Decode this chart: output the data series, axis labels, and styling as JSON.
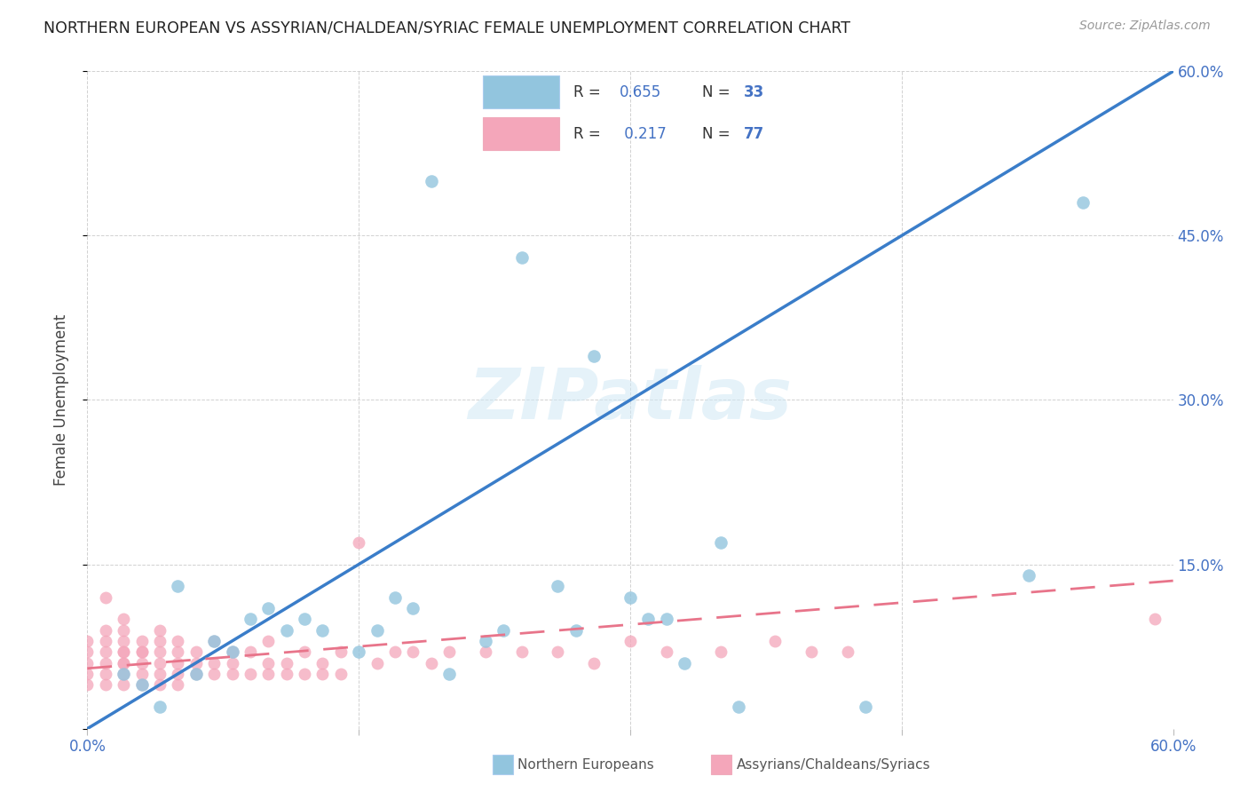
{
  "title": "NORTHERN EUROPEAN VS ASSYRIAN/CHALDEAN/SYRIAC FEMALE UNEMPLOYMENT CORRELATION CHART",
  "source": "Source: ZipAtlas.com",
  "ylabel": "Female Unemployment",
  "watermark": "ZIPatlas",
  "xlim": [
    0.0,
    0.6
  ],
  "ylim": [
    0.0,
    0.6
  ],
  "blue_R": "0.655",
  "blue_N": "33",
  "pink_R": "0.217",
  "pink_N": "77",
  "blue_color": "#92c5de",
  "pink_color": "#f4a6ba",
  "blue_line_color": "#3a7dc9",
  "pink_line_color": "#e8748a",
  "legend_blue_label": "Northern Europeans",
  "legend_pink_label": "Assyrians/Chaldeans/Syriacs",
  "background_color": "#ffffff",
  "grid_color": "#cccccc",
  "blue_x": [
    0.02,
    0.03,
    0.04,
    0.05,
    0.06,
    0.07,
    0.08,
    0.09,
    0.1,
    0.11,
    0.12,
    0.13,
    0.15,
    0.16,
    0.17,
    0.18,
    0.19,
    0.2,
    0.22,
    0.23,
    0.24,
    0.26,
    0.27,
    0.28,
    0.3,
    0.31,
    0.32,
    0.33,
    0.35,
    0.36,
    0.43,
    0.52,
    0.55
  ],
  "blue_y": [
    0.05,
    0.04,
    0.02,
    0.13,
    0.05,
    0.08,
    0.07,
    0.1,
    0.11,
    0.09,
    0.1,
    0.09,
    0.07,
    0.09,
    0.12,
    0.11,
    0.5,
    0.05,
    0.08,
    0.09,
    0.43,
    0.13,
    0.09,
    0.34,
    0.12,
    0.1,
    0.1,
    0.06,
    0.17,
    0.02,
    0.02,
    0.14,
    0.48
  ],
  "pink_x": [
    0.0,
    0.0,
    0.0,
    0.0,
    0.0,
    0.01,
    0.01,
    0.01,
    0.01,
    0.01,
    0.01,
    0.01,
    0.02,
    0.02,
    0.02,
    0.02,
    0.02,
    0.02,
    0.02,
    0.02,
    0.02,
    0.03,
    0.03,
    0.03,
    0.03,
    0.03,
    0.03,
    0.04,
    0.04,
    0.04,
    0.04,
    0.04,
    0.04,
    0.05,
    0.05,
    0.05,
    0.05,
    0.05,
    0.06,
    0.06,
    0.06,
    0.07,
    0.07,
    0.07,
    0.08,
    0.08,
    0.08,
    0.09,
    0.09,
    0.1,
    0.1,
    0.1,
    0.11,
    0.11,
    0.12,
    0.12,
    0.13,
    0.13,
    0.14,
    0.14,
    0.15,
    0.16,
    0.17,
    0.18,
    0.19,
    0.2,
    0.22,
    0.24,
    0.26,
    0.28,
    0.3,
    0.32,
    0.35,
    0.38,
    0.4,
    0.42,
    0.59
  ],
  "pink_y": [
    0.04,
    0.05,
    0.06,
    0.07,
    0.08,
    0.04,
    0.05,
    0.06,
    0.07,
    0.08,
    0.09,
    0.12,
    0.04,
    0.05,
    0.06,
    0.06,
    0.07,
    0.07,
    0.08,
    0.09,
    0.1,
    0.04,
    0.05,
    0.06,
    0.07,
    0.07,
    0.08,
    0.04,
    0.05,
    0.06,
    0.07,
    0.08,
    0.09,
    0.04,
    0.05,
    0.06,
    0.07,
    0.08,
    0.05,
    0.06,
    0.07,
    0.05,
    0.06,
    0.08,
    0.05,
    0.06,
    0.07,
    0.05,
    0.07,
    0.05,
    0.06,
    0.08,
    0.05,
    0.06,
    0.05,
    0.07,
    0.05,
    0.06,
    0.05,
    0.07,
    0.17,
    0.06,
    0.07,
    0.07,
    0.06,
    0.07,
    0.07,
    0.07,
    0.07,
    0.06,
    0.08,
    0.07,
    0.07,
    0.08,
    0.07,
    0.07,
    0.1
  ],
  "blue_line_x0": 0.0,
  "blue_line_y0": 0.0,
  "blue_line_x1": 0.6,
  "blue_line_y1": 0.6,
  "pink_line_x0": 0.0,
  "pink_line_y0": 0.055,
  "pink_line_x1": 0.6,
  "pink_line_y1": 0.135
}
